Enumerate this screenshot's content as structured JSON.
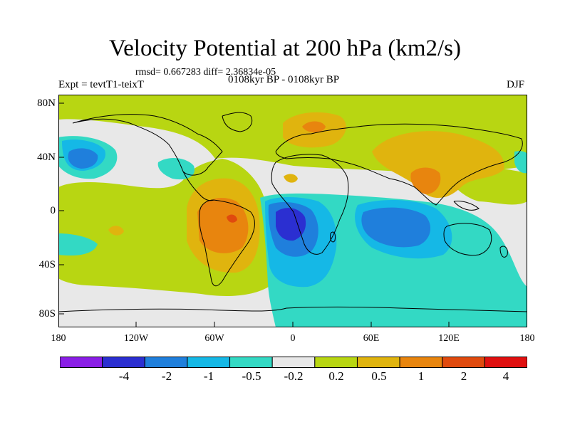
{
  "title": "Velocity Potential at 200 hPa (km2/s)",
  "stats": "rmsd= 0.667283 diff= 2.36834e-05",
  "experiment": "Expt = tevtT1-teixT",
  "period": "0108kyr BP - 0108kyr BP",
  "season": "DJF",
  "lat_labels": [
    "80N",
    "40N",
    "0",
    "40S",
    "80S"
  ],
  "lon_labels": [
    "180",
    "120W",
    "60W",
    "0",
    "60E",
    "120E",
    "180"
  ],
  "colorbar": {
    "colors": [
      "#8a1ee6",
      "#2b2fd1",
      "#1f7fdc",
      "#15b8e6",
      "#33d9c4",
      "#e8e8e8",
      "#b8d612",
      "#e0b40e",
      "#e8850e",
      "#e04a0e",
      "#e01010"
    ],
    "labels": [
      "-4",
      "-2",
      "-1",
      "-0.5",
      "-0.2",
      "0.2",
      "0.5",
      "1",
      "2",
      "4"
    ]
  },
  "colors": {
    "neg_4": "#2b2fd1",
    "neg_2": "#1f7fdc",
    "neg_1": "#15b8e6",
    "neg_05": "#33d9c4",
    "neutral": "#e8e8e8",
    "pos_02": "#b8d612",
    "pos_05": "#e0b40e",
    "pos_1": "#e8850e",
    "pos_2": "#e04a0e"
  }
}
